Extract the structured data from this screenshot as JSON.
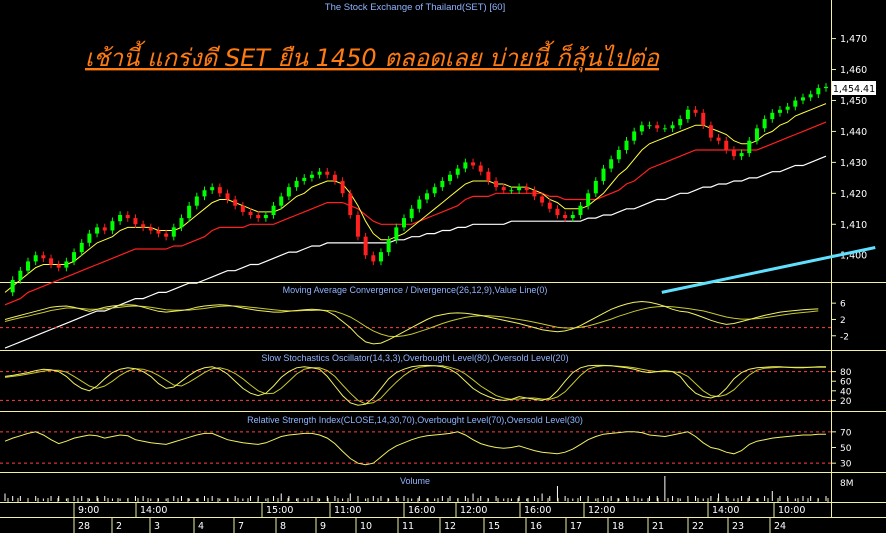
{
  "colors": {
    "background": "#000000",
    "frame": "#f0f0a0",
    "title_blue": "#8fb4ff",
    "headline_orange": "#ff7a10",
    "candle_up": "#00ff00",
    "candle_down": "#ff2020",
    "ema_fast": "#ffff40",
    "ema_mid": "#ff2020",
    "ema_slow": "#ffffff",
    "trend_cyan": "#60e0ff",
    "dashed_level": "#ff4040",
    "osc_line": "#f0f060",
    "price_badge_bg": "#ffffff",
    "price_badge_text": "#000000"
  },
  "header": {
    "title": "The Stock Exchange of Thailand(SET) [60]",
    "headline": "เช้านี้ แกร่งดี SET ยืน 1450 ตลอดเลย บ่ายนี้ ก็ลุ้นไปต่อ"
  },
  "last_price": "1,454.41",
  "panels": {
    "macd": {
      "label": "Moving Average Convergence / Divergence(26,12,9),Value Line(0)",
      "ticks": [
        "6",
        "2",
        "-2"
      ]
    },
    "stoch": {
      "label": "Slow Stochastics Oscillator(14,3,3),Overbought Level(80),Oversold Level(20)",
      "ticks": [
        "80",
        "60",
        "40",
        "20"
      ]
    },
    "rsi": {
      "label": "Relative Strength Index(CLOSE,14,30,70),Overbought Level(70),Oversold Level(30)",
      "ticks": [
        "70",
        "50",
        "30"
      ]
    },
    "volume": {
      "label": "Volume",
      "ticks": [
        "8M"
      ]
    }
  },
  "time_axis": {
    "times": [
      "9:00",
      "14:00",
      "15:00",
      "11:00",
      "16:00",
      "12:00",
      "16:00",
      "12:00",
      "14:00",
      "10:00"
    ],
    "days": [
      "28",
      "2",
      "3",
      "4",
      "7",
      "8",
      "9",
      "10",
      "11",
      "12",
      "15",
      "16",
      "17",
      "18",
      "21",
      "22",
      "23",
      "24"
    ]
  },
  "chart_data": {
    "type": "line",
    "instrument": "The Stock Exchange of Thailand(SET) [60]",
    "interval": "60",
    "y_axis": {
      "ticks": [
        "1,470",
        "1,460",
        "1,450",
        "1,440",
        "1,430",
        "1,420",
        "1,410",
        "1,400"
      ],
      "range": [
        1392,
        1476
      ]
    },
    "last_value": 1454.41,
    "price_close": [
      1388,
      1392,
      1395,
      1398,
      1400,
      1399,
      1397,
      1396,
      1398,
      1401,
      1404,
      1407,
      1409,
      1408,
      1411,
      1413,
      1412,
      1410,
      1409,
      1408,
      1407,
      1406,
      1409,
      1412,
      1416,
      1419,
      1421,
      1422,
      1420,
      1418,
      1416,
      1414,
      1413,
      1412,
      1413,
      1416,
      1419,
      1422,
      1424,
      1425,
      1426,
      1427,
      1426,
      1424,
      1420,
      1413,
      1406,
      1400,
      1398,
      1401,
      1405,
      1409,
      1412,
      1415,
      1418,
      1420,
      1422,
      1424,
      1426,
      1428,
      1430,
      1429,
      1427,
      1424,
      1422,
      1421,
      1421,
      1422,
      1421,
      1419,
      1417,
      1415,
      1413,
      1412,
      1413,
      1416,
      1420,
      1424,
      1428,
      1431,
      1434,
      1437,
      1440,
      1442,
      1442,
      1441,
      1441,
      1442,
      1444,
      1447,
      1446,
      1442,
      1438,
      1437,
      1434,
      1432,
      1433,
      1437,
      1441,
      1444,
      1446,
      1447,
      1448,
      1450,
      1451,
      1452,
      1454,
      1454.41
    ],
    "ema_fast": [
      1388,
      1390,
      1392,
      1394,
      1396,
      1397,
      1397,
      1397,
      1397,
      1398,
      1400,
      1402,
      1404,
      1405,
      1406,
      1408,
      1409,
      1409,
      1409,
      1409,
      1408,
      1408,
      1408,
      1409,
      1411,
      1413,
      1415,
      1417,
      1418,
      1418,
      1417,
      1416,
      1415,
      1414,
      1414,
      1414,
      1415,
      1417,
      1419,
      1420,
      1422,
      1423,
      1424,
      1424,
      1423,
      1420,
      1416,
      1411,
      1407,
      1405,
      1405,
      1406,
      1407,
      1409,
      1411,
      1413,
      1415,
      1417,
      1419,
      1421,
      1423,
      1424,
      1424,
      1424,
      1423,
      1423,
      1422,
      1422,
      1422,
      1421,
      1420,
      1418,
      1417,
      1415,
      1415,
      1415,
      1416,
      1418,
      1420,
      1423,
      1426,
      1428,
      1431,
      1434,
      1436,
      1437,
      1438,
      1439,
      1440,
      1441,
      1442,
      1442,
      1441,
      1440,
      1439,
      1437,
      1436,
      1436,
      1437,
      1439,
      1440,
      1442,
      1443,
      1445,
      1446,
      1447,
      1448,
      1449
    ],
    "ema_mid": [
      1384,
      1385,
      1386,
      1388,
      1389,
      1390,
      1391,
      1392,
      1393,
      1394,
      1395,
      1396,
      1397,
      1398,
      1399,
      1400,
      1401,
      1402,
      1402,
      1402,
      1402,
      1402,
      1403,
      1403,
      1404,
      1405,
      1406,
      1408,
      1409,
      1409,
      1409,
      1409,
      1410,
      1410,
      1410,
      1410,
      1411,
      1412,
      1413,
      1414,
      1415,
      1416,
      1417,
      1417,
      1417,
      1416,
      1415,
      1413,
      1411,
      1410,
      1410,
      1410,
      1410,
      1410,
      1411,
      1412,
      1413,
      1414,
      1415,
      1416,
      1418,
      1419,
      1419,
      1419,
      1420,
      1420,
      1420,
      1420,
      1420,
      1420,
      1420,
      1419,
      1419,
      1418,
      1418,
      1418,
      1418,
      1418,
      1419,
      1420,
      1421,
      1423,
      1424,
      1426,
      1428,
      1429,
      1430,
      1431,
      1432,
      1433,
      1434,
      1434,
      1434,
      1434,
      1434,
      1434,
      1434,
      1434,
      1434,
      1435,
      1436,
      1437,
      1438,
      1439,
      1440,
      1441,
      1442,
      1443
    ],
    "ema_slow": [
      1370,
      1371,
      1372,
      1373,
      1374,
      1375,
      1376,
      1377,
      1378,
      1379,
      1380,
      1381,
      1382,
      1382,
      1383,
      1384,
      1385,
      1386,
      1386,
      1387,
      1388,
      1388,
      1389,
      1390,
      1391,
      1391,
      1392,
      1393,
      1394,
      1395,
      1395,
      1396,
      1397,
      1397,
      1398,
      1399,
      1400,
      1401,
      1401,
      1402,
      1403,
      1403,
      1404,
      1404,
      1404,
      1404,
      1404,
      1404,
      1404,
      1404,
      1404,
      1405,
      1405,
      1406,
      1406,
      1407,
      1407,
      1408,
      1408,
      1409,
      1409,
      1410,
      1410,
      1410,
      1410,
      1410,
      1411,
      1411,
      1411,
      1411,
      1411,
      1411,
      1411,
      1411,
      1411,
      1411,
      1412,
      1412,
      1413,
      1413,
      1414,
      1415,
      1415,
      1416,
      1417,
      1418,
      1418,
      1419,
      1420,
      1420,
      1421,
      1422,
      1422,
      1423,
      1423,
      1424,
      1424,
      1425,
      1425,
      1426,
      1427,
      1427,
      1428,
      1429,
      1429,
      1430,
      1431,
      1432
    ],
    "trend_line": {
      "x": [
        80,
        106
      ],
      "y": [
        1388,
        1402.5
      ]
    },
    "macd": {
      "range": [
        -5,
        8
      ],
      "values": [
        2,
        2.5,
        3,
        3.5,
        4,
        4.5,
        5,
        5.2,
        5.3,
        5,
        4.5,
        4,
        4.5,
        5,
        5.3,
        5.5,
        5.6,
        5.5,
        5,
        4.5,
        4,
        3.8,
        4,
        4.2,
        4.5,
        5,
        5.3,
        5.5,
        5.6,
        5.5,
        5.2,
        4.8,
        4.5,
        4.2,
        4,
        3.8,
        3.8,
        4,
        4.2,
        4.4,
        4.5,
        4.4,
        4,
        3,
        1.5,
        0,
        -2,
        -3.5,
        -4,
        -3.8,
        -3,
        -2,
        -1,
        0,
        1,
        2,
        2.8,
        3.2,
        3.5,
        3.6,
        3.5,
        3.3,
        3,
        2.6,
        2.2,
        1.8,
        1.4,
        1,
        0.5,
        0,
        -0.5,
        -0.8,
        -1,
        -0.8,
        -0.3,
        0.5,
        1.5,
        2.5,
        3.5,
        4.5,
        5.2,
        5.8,
        6.2,
        6.4,
        6.2,
        5.8,
        5.2,
        4.5,
        4,
        3.8,
        3.2,
        2.5,
        1.8,
        1.2,
        0.8,
        1,
        1.5,
        2,
        2.5,
        3,
        3.4,
        3.8,
        4,
        4.2,
        4.4,
        4.5,
        4.6
      ],
      "signal": [
        1.5,
        2,
        2.4,
        2.8,
        3.3,
        3.7,
        4.2,
        4.5,
        4.8,
        4.8,
        4.7,
        4.5,
        4.5,
        4.6,
        4.8,
        5,
        5.2,
        5.3,
        5.2,
        5,
        4.7,
        4.4,
        4.3,
        4.3,
        4.3,
        4.5,
        4.7,
        5,
        5.2,
        5.3,
        5.3,
        5.2,
        5,
        4.8,
        4.6,
        4.4,
        4.2,
        4.1,
        4.1,
        4.2,
        4.2,
        4.3,
        4.2,
        4,
        3.4,
        2.6,
        1.5,
        0.3,
        -0.8,
        -1.6,
        -2.1,
        -2.2,
        -2,
        -1.6,
        -1,
        -0.4,
        0.3,
        1,
        1.6,
        2.1,
        2.5,
        2.8,
        2.9,
        2.9,
        2.8,
        2.6,
        2.3,
        2,
        1.7,
        1.3,
        0.9,
        0.5,
        0.1,
        -0.1,
        -0.1,
        0.1,
        0.4,
        0.9,
        1.5,
        2.1,
        2.8,
        3.4,
        4,
        4.5,
        4.9,
        5.1,
        5.2,
        5.1,
        4.9,
        4.7,
        4.4,
        4.1,
        3.6,
        3.1,
        2.6,
        2.3,
        2.1,
        2.1,
        2.2,
        2.4,
        2.7,
        3,
        3.3,
        3.5,
        3.7,
        3.9,
        4.1
      ],
      "zero_line": 0
    },
    "stochastic": {
      "range": [
        0,
        100
      ],
      "k": [
        70,
        72,
        75,
        78,
        82,
        85,
        84,
        80,
        70,
        55,
        45,
        40,
        50,
        65,
        78,
        85,
        88,
        86,
        80,
        70,
        55,
        45,
        48,
        60,
        72,
        82,
        88,
        90,
        85,
        75,
        60,
        45,
        35,
        30,
        35,
        50,
        68,
        80,
        88,
        90,
        88,
        85,
        70,
        50,
        30,
        15,
        10,
        12,
        25,
        45,
        65,
        78,
        85,
        90,
        92,
        93,
        92,
        90,
        85,
        75,
        60,
        45,
        35,
        28,
        22,
        20,
        22,
        28,
        25,
        22,
        20,
        25,
        40,
        60,
        78,
        88,
        92,
        93,
        93,
        92,
        90,
        88,
        85,
        80,
        78,
        80,
        82,
        80,
        70,
        50,
        35,
        28,
        25,
        30,
        45,
        65,
        78,
        85,
        88,
        89,
        90,
        90,
        89,
        88,
        88,
        89,
        90,
        90
      ],
      "d": [
        68,
        70,
        72,
        75,
        78,
        81,
        83,
        83,
        79,
        70,
        60,
        50,
        45,
        50,
        60,
        72,
        81,
        86,
        85,
        80,
        72,
        62,
        52,
        50,
        58,
        68,
        78,
        86,
        88,
        84,
        76,
        65,
        52,
        40,
        34,
        35,
        45,
        60,
        75,
        85,
        88,
        88,
        82,
        70,
        52,
        35,
        20,
        13,
        15,
        25,
        42,
        58,
        72,
        83,
        89,
        91,
        92,
        92,
        89,
        84,
        75,
        63,
        50,
        40,
        30,
        25,
        22,
        23,
        25,
        25,
        23,
        22,
        27,
        38,
        55,
        72,
        85,
        90,
        92,
        92,
        91,
        90,
        88,
        85,
        82,
        80,
        80,
        80,
        78,
        70,
        55,
        40,
        30,
        28,
        32,
        42,
        58,
        73,
        83,
        87,
        88,
        89,
        89,
        89,
        89,
        89,
        89,
        89
      ],
      "overbought": 80,
      "oversold": 20
    },
    "rsi": {
      "range": [
        20,
        80
      ],
      "values": [
        58,
        62,
        65,
        68,
        70,
        66,
        60,
        55,
        58,
        62,
        64,
        66,
        65,
        62,
        64,
        66,
        65,
        60,
        58,
        56,
        55,
        54,
        57,
        60,
        63,
        66,
        68,
        68,
        64,
        60,
        58,
        56,
        55,
        54,
        56,
        60,
        64,
        66,
        67,
        68,
        68,
        66,
        62,
        55,
        45,
        36,
        30,
        28,
        30,
        38,
        46,
        52,
        56,
        60,
        63,
        65,
        66,
        67,
        68,
        70,
        66,
        60,
        55,
        52,
        50,
        49,
        50,
        52,
        49,
        46,
        44,
        43,
        42,
        44,
        48,
        54,
        60,
        64,
        67,
        68,
        69,
        70,
        70,
        69,
        66,
        65,
        64,
        66,
        68,
        70,
        64,
        56,
        50,
        48,
        44,
        42,
        46,
        54,
        58,
        60,
        62,
        63,
        64,
        65,
        66,
        66,
        67,
        67
      ],
      "overbought": 70,
      "oversold": 30
    },
    "volume": {
      "unit": "M",
      "values": [
        3,
        2,
        2,
        1,
        2,
        1,
        2,
        2,
        1,
        2,
        2,
        1,
        2,
        2,
        1,
        1,
        1,
        2,
        2,
        1,
        1,
        1,
        2,
        2,
        1,
        1,
        2,
        2,
        1,
        1,
        2,
        1,
        2,
        2,
        1,
        2,
        3,
        2,
        1,
        1,
        2,
        1,
        2,
        2,
        1,
        3,
        2,
        1,
        2,
        2,
        1,
        2,
        2,
        1,
        2,
        1,
        1,
        2,
        2,
        1,
        2,
        3,
        2,
        1,
        2,
        1,
        1,
        2,
        1,
        2,
        3,
        2,
        6,
        2,
        1,
        2,
        2,
        1,
        2,
        2,
        1,
        2,
        2,
        1,
        2,
        2,
        10,
        2,
        1,
        2,
        2,
        1,
        2,
        3,
        2,
        1,
        2,
        2,
        1,
        2,
        4,
        2,
        2,
        1,
        2,
        2,
        1,
        2
      ]
    }
  }
}
